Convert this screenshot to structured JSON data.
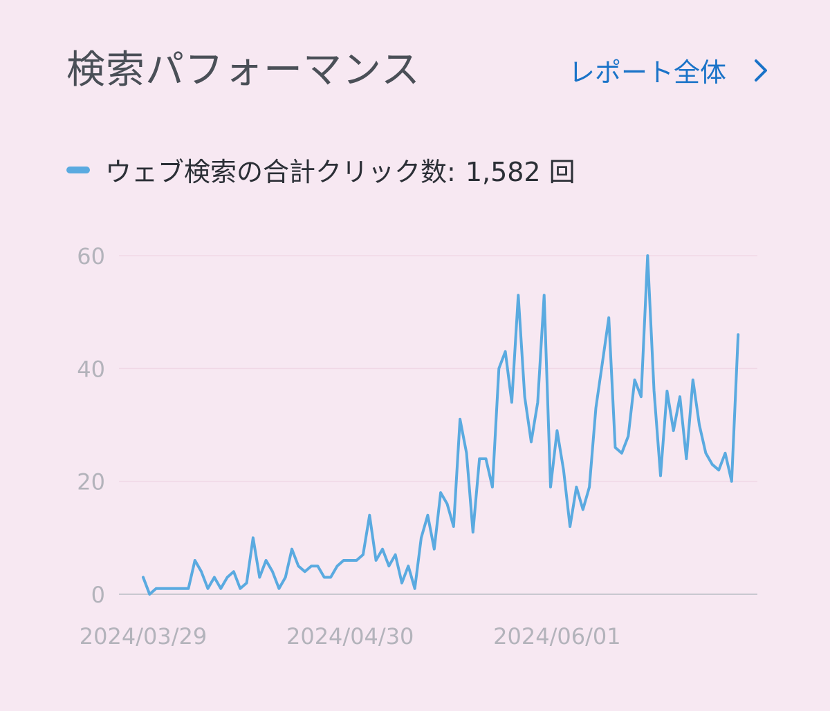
{
  "header": {
    "title": "検索パフォーマンス",
    "report_link_label": "レポート全体"
  },
  "legend": {
    "label": "ウェブ検索の合計クリック数:",
    "value": "1,582 回",
    "color": "#5aaae0"
  },
  "chart_data": {
    "type": "line",
    "ylim": [
      0,
      60
    ],
    "yticks": [
      0,
      20,
      40,
      60
    ],
    "xtick_labels": [
      "2024/03/29",
      "2024/04/30",
      "2024/06/01"
    ],
    "grid": true,
    "series": [
      {
        "color": "#5aaae0",
        "x_start": "2024/03/29",
        "values": [
          3,
          0,
          1,
          1,
          1,
          1,
          1,
          1,
          6,
          4,
          1,
          3,
          1,
          3,
          4,
          1,
          2,
          10,
          3,
          6,
          4,
          1,
          3,
          8,
          5,
          4,
          5,
          5,
          3,
          3,
          5,
          6,
          6,
          6,
          7,
          14,
          6,
          8,
          5,
          7,
          2,
          5,
          1,
          10,
          14,
          8,
          18,
          16,
          12,
          31,
          25,
          11,
          24,
          24,
          19,
          40,
          43,
          34,
          53,
          35,
          27,
          34,
          53,
          19,
          29,
          22,
          12,
          19,
          15,
          19,
          33,
          41,
          49,
          26,
          25,
          28,
          38,
          35,
          60,
          36,
          21,
          36,
          29,
          35,
          24,
          38,
          30,
          25,
          23,
          22,
          25,
          20,
          46
        ]
      }
    ]
  }
}
